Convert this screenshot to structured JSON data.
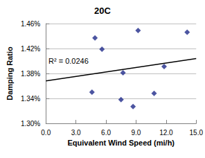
{
  "chart_data": {
    "type": "scatter",
    "title": "20C",
    "x_label": "Equivalent Wind Speed (mi/h)",
    "y_label": "Damping Ratio",
    "x": [
      4.6,
      4.9,
      5.6,
      7.5,
      7.7,
      8.7,
      9.2,
      10.8,
      11.8,
      14.1
    ],
    "values": [
      1.35,
      1.437,
      1.419,
      1.338,
      1.381,
      1.327,
      1.449,
      1.348,
      1.391,
      1.446
    ],
    "color": "#1f2a8a",
    "marker": "diamond",
    "trend_x": [
      0,
      15
    ],
    "trend_values": [
      1.368,
      1.404
    ],
    "trend_color": "#000000",
    "annotation": "R² = 0.0246",
    "xlim": [
      0,
      15
    ],
    "xticks": [
      {
        "value": 0,
        "label": "0.0"
      },
      {
        "value": 3,
        "label": "3.0"
      },
      {
        "value": 6,
        "label": "6.0"
      },
      {
        "value": 9,
        "label": "9.0"
      },
      {
        "value": 12,
        "label": "12.0"
      },
      {
        "value": 15,
        "label": "15.0"
      }
    ],
    "ylim": [
      1.3,
      1.46
    ],
    "yticks": [
      {
        "value": 1.3,
        "label": "1.30%"
      },
      {
        "value": 1.34,
        "label": "1.34%"
      },
      {
        "value": 1.38,
        "label": "1.38%"
      },
      {
        "value": 1.42,
        "label": "1.42%"
      },
      {
        "value": 1.46,
        "label": "1.46%"
      }
    ],
    "grid": true
  }
}
